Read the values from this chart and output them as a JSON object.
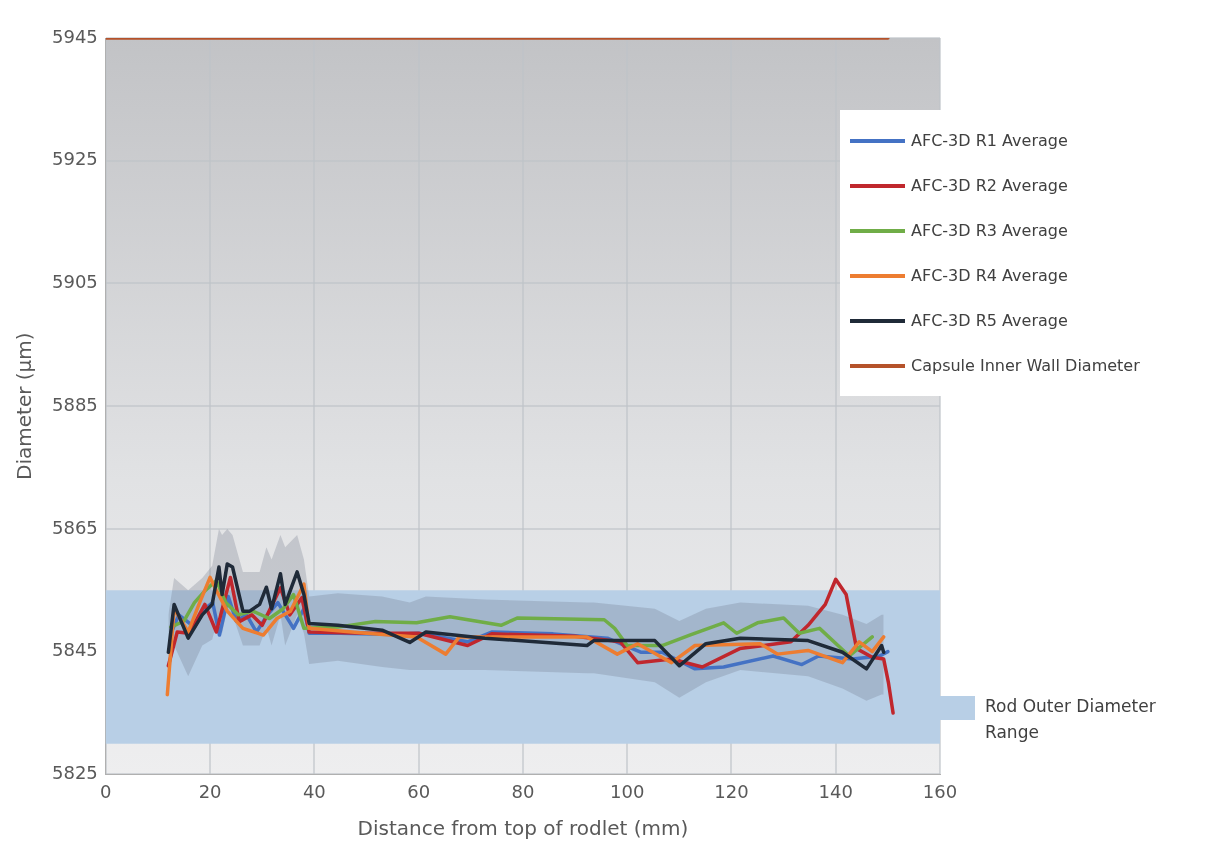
{
  "chart_data": {
    "type": "line",
    "xlabel": "Distance from top of rodlet (mm)",
    "ylabel": "Diameter (µm)",
    "xlim": [
      0,
      160
    ],
    "xticks": [
      0,
      20,
      40,
      60,
      80,
      100,
      120,
      140,
      160
    ],
    "ylim": [
      5825,
      5945
    ],
    "yticks": [
      5825,
      5845,
      5865,
      5885,
      5905,
      5925,
      5945
    ],
    "grid": true,
    "legend": "right",
    "bands": [
      {
        "axis": "y",
        "from": 5830,
        "to": 5855,
        "label": "Rod Outer Diameter Range",
        "color": "#b8cfe6"
      }
    ],
    "series": [
      {
        "name": "AFC-3D R1 Average",
        "color": "#4472c4",
        "x": [
          12.5,
          14,
          17,
          19,
          20.5,
          21.8,
          23.5,
          25,
          27,
          28.9,
          31,
          33,
          36,
          38,
          39,
          45,
          55,
          60,
          69.4,
          74,
          85.8,
          96.2,
          102.7,
          106.7,
          113,
          118.5,
          128,
          133.5,
          136.7,
          143.3,
          148.4,
          150
        ],
        "values": [
          5848,
          5851,
          5849,
          5852,
          5853,
          5847.7,
          5854,
          5850,
          5851,
          5848.2,
          5851,
          5853,
          5848.8,
          5852,
          5848,
          5848,
          5847.8,
          5848,
          5846.6,
          5848.2,
          5847.9,
          5847.2,
          5844.9,
          5844.9,
          5842.2,
          5842.5,
          5844.3,
          5842.9,
          5844.3,
          5843.8,
          5844.3,
          5845
        ]
      },
      {
        "name": "AFC-3D R2 Average",
        "color": "#c0272d",
        "x": [
          12,
          13.7,
          16,
          19,
          21.2,
          23.9,
          25.6,
          28,
          30,
          33.5,
          35.3,
          37.6,
          39,
          50,
          60,
          69.4,
          74,
          90,
          98.7,
          102,
          108.5,
          114.4,
          121.6,
          131.4,
          134.7,
          138,
          140,
          142,
          144,
          147,
          149.2,
          150.1,
          151
        ],
        "values": [
          5842.7,
          5848.2,
          5848,
          5852.7,
          5848.2,
          5857.1,
          5849.9,
          5851,
          5849.3,
          5855.4,
          5851,
          5853.8,
          5848.2,
          5848,
          5848,
          5846,
          5847.9,
          5847.5,
          5846.6,
          5843.2,
          5843.8,
          5842.5,
          5845.5,
          5846.6,
          5849.3,
          5852.7,
          5856.8,
          5854.3,
          5845.5,
          5844.1,
          5843.8,
          5840,
          5835
        ]
      },
      {
        "name": "AFC-3D R3 Average",
        "color": "#70ad47",
        "x": [
          12.5,
          15,
          17,
          19,
          21.2,
          23,
          25.4,
          28.2,
          31.4,
          34,
          36,
          38,
          44.5,
          51.7,
          59.6,
          66,
          75.8,
          79,
          95.6,
          97.6,
          100,
          106.7,
          112,
          118.5,
          121,
          125,
          130,
          133,
          136.9,
          142.6,
          147
        ],
        "values": [
          5849,
          5850,
          5853,
          5854.9,
          5856.6,
          5853,
          5851,
          5851.6,
          5850.4,
          5852,
          5854.3,
          5848.8,
          5849,
          5849.9,
          5849.7,
          5850.7,
          5849.3,
          5850.5,
          5850.2,
          5848.8,
          5846,
          5846,
          5847.7,
          5849.7,
          5848,
          5849.7,
          5850.5,
          5848,
          5848.8,
          5844.3,
          5847.4
        ]
      },
      {
        "name": "AFC-3D R4 Average",
        "color": "#ed7d31",
        "x": [
          11.8,
          13.1,
          15.8,
          18,
          20,
          21.2,
          23.3,
          26.3,
          30.2,
          32.8,
          35.4,
          38,
          39,
          50,
          59.6,
          65.2,
          67.8,
          92.3,
          98.1,
          102,
          108.5,
          113,
          125.5,
          128.8,
          134.7,
          141.3,
          144.5,
          147,
          149.2
        ],
        "values": [
          5838,
          5852,
          5848.2,
          5853,
          5857.1,
          5855,
          5851.6,
          5848.8,
          5847.7,
          5850.4,
          5851.6,
          5856,
          5848.8,
          5848,
          5847.4,
          5844.6,
          5847.4,
          5847.4,
          5844.6,
          5846.3,
          5843.2,
          5846,
          5846.3,
          5844.6,
          5845.2,
          5843.2,
          5846.6,
          5845,
          5847.4
        ]
      },
      {
        "name": "AFC-3D R5 Average",
        "color": "#1f2a38",
        "x": [
          12,
          13.1,
          15.8,
          18.5,
          20.4,
          21.7,
          22.3,
          23.3,
          24.3,
          26.3,
          27.6,
          29.5,
          30.8,
          31.8,
          33.5,
          34.4,
          36.7,
          38,
          39,
          44.5,
          53,
          58.3,
          61.4,
          72.7,
          92.3,
          93.6,
          105.3,
          110,
          115.1,
          121.7,
          134.7,
          141.3,
          145.9,
          148.8,
          149.2
        ],
        "values": [
          5844.9,
          5852.7,
          5847.2,
          5851,
          5852.7,
          5858.8,
          5854.3,
          5859.3,
          5858.8,
          5851.6,
          5851.6,
          5852.7,
          5855.5,
          5852,
          5857.7,
          5852.7,
          5858,
          5854.3,
          5849.6,
          5849.3,
          5848.5,
          5846.5,
          5848.2,
          5847.2,
          5846,
          5846.8,
          5846.8,
          5842.7,
          5846.3,
          5847.2,
          5846.8,
          5844.9,
          5842.2,
          5846,
          5844.9
        ],
        "lower": [
          5840,
          5846,
          5841,
          5846,
          5847,
          5851,
          5848,
          5852,
          5851,
          5846,
          5846,
          5846,
          5849,
          5846,
          5851,
          5846,
          5851,
          5848,
          5843,
          5843.5,
          5842.5,
          5842,
          5842,
          5842,
          5841.5,
          5841.5,
          5840,
          5837.5,
          5840,
          5842,
          5841,
          5839,
          5837,
          5838,
          5838
        ],
        "upper": [
          5851,
          5857,
          5855,
          5857,
          5859,
          5865,
          5864,
          5865,
          5864,
          5858,
          5858,
          5858,
          5862,
          5860,
          5864,
          5862,
          5864,
          5860,
          5854,
          5854.5,
          5854,
          5853,
          5854,
          5853.5,
          5853,
          5853,
          5852,
          5850,
          5852,
          5853,
          5852.5,
          5851,
          5849.5,
          5851,
          5851
        ]
      },
      {
        "name": "Capsule Inner Wall Diameter",
        "color": "#b5522a",
        "x": [
          0,
          150
        ],
        "values": [
          5945,
          5945
        ]
      }
    ]
  }
}
